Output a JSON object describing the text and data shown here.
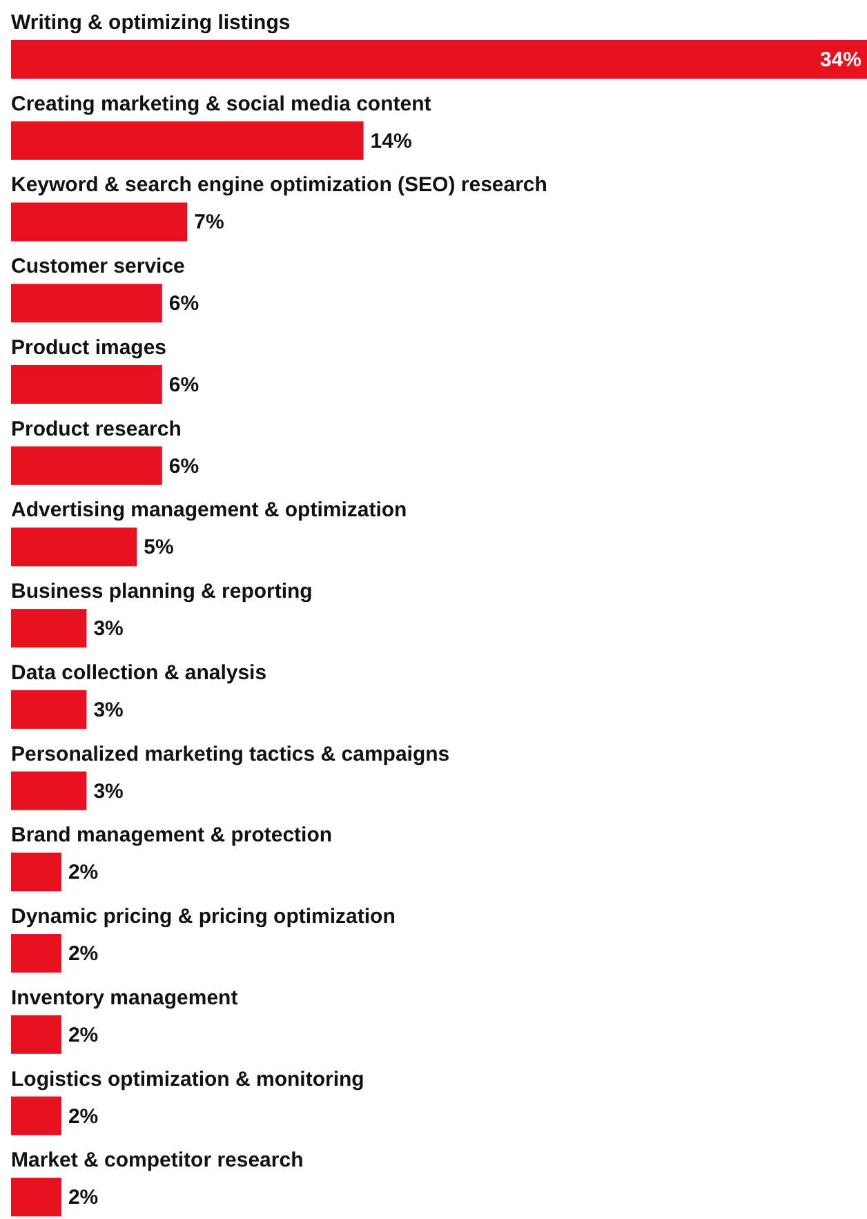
{
  "chart_data": {
    "type": "bar",
    "orientation": "horizontal",
    "categories": [
      "Writing & optimizing listings",
      "Creating marketing & social media content",
      "Keyword & search engine optimization (SEO) research",
      "Customer service",
      "Product images",
      "Product research",
      "Advertising management & optimization",
      "Business planning & reporting",
      "Data collection & analysis",
      "Personalized marketing tactics & campaigns",
      "Brand management & protection",
      "Dynamic pricing & pricing optimization",
      "Inventory management",
      "Logistics optimization & monitoring",
      "Market & competitor research"
    ],
    "values": [
      34,
      14,
      7,
      6,
      6,
      6,
      5,
      3,
      3,
      3,
      2,
      2,
      2,
      2,
      2
    ],
    "value_labels": [
      "34%",
      "14%",
      "7%",
      "6%",
      "6%",
      "6%",
      "5%",
      "3%",
      "3%",
      "3%",
      "2%",
      "2%",
      "2%",
      "2%",
      "2%"
    ],
    "color": "#e8111f",
    "xlim": [
      0,
      34
    ],
    "grid": false,
    "legend": false
  }
}
